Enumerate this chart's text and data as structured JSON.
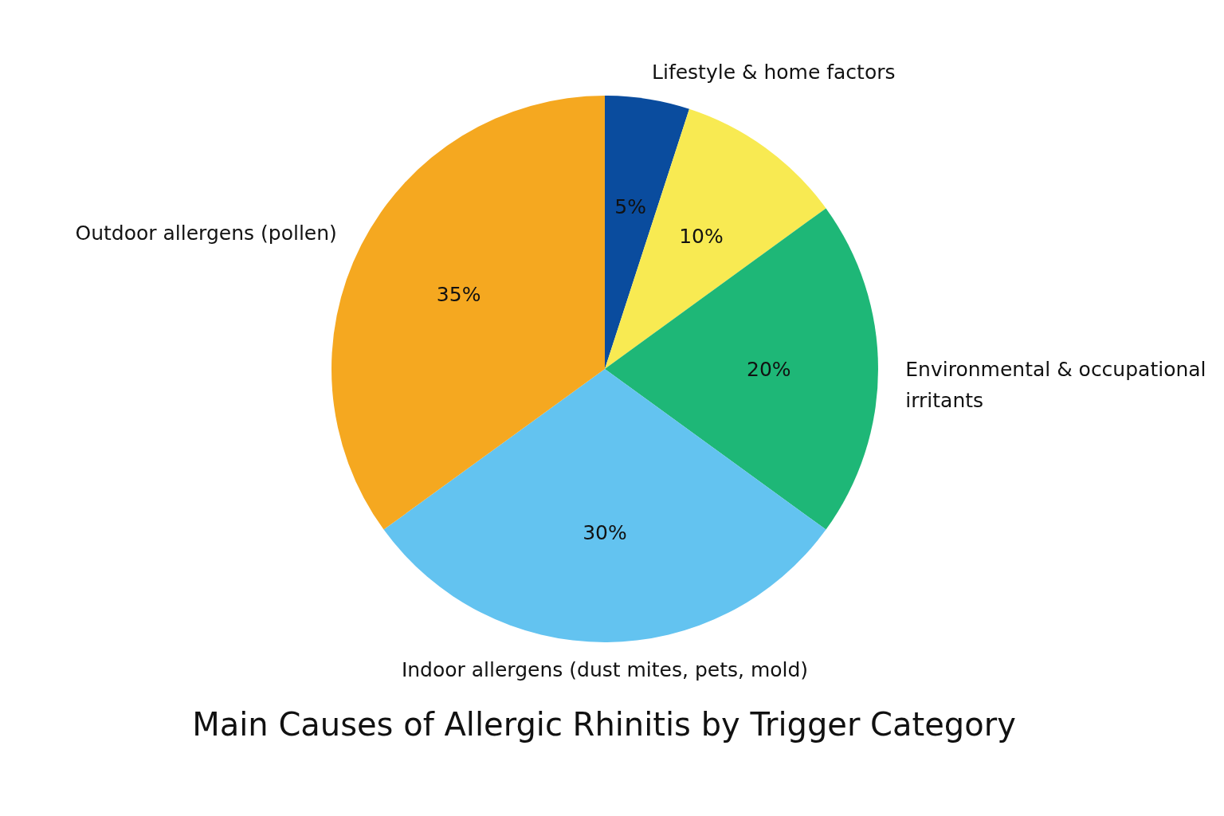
{
  "chart_data": {
    "type": "pie",
    "title": "Main Causes of Allergic Rhinitis by Trigger Category",
    "categories": [
      "Lifestyle & home factors",
      null,
      "Environmental & occupational irritants",
      "Indoor allergens (dust mites, pets, mold)",
      "Outdoor allergens (pollen)"
    ],
    "values": [
      5,
      10,
      20,
      30,
      35
    ],
    "value_labels": [
      "5%",
      "10%",
      "20%",
      "30%",
      "35%"
    ],
    "colors": [
      "#0a4c9e",
      "#f8ea52",
      "#1eb777",
      "#63c3f0",
      "#f5a820"
    ]
  }
}
